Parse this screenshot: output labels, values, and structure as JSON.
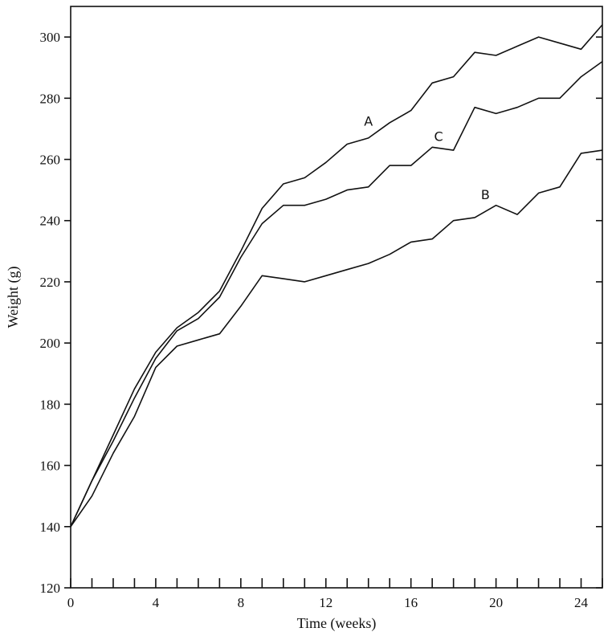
{
  "chart_data": {
    "type": "line",
    "title": "",
    "xlabel": "Time (weeks)",
    "ylabel": "Weight (g)",
    "xlim": [
      0,
      25
    ],
    "ylim": [
      120,
      310
    ],
    "xticks": [
      0,
      4,
      8,
      12,
      16,
      20,
      24
    ],
    "xticks_minor": [
      1,
      2,
      3,
      5,
      6,
      7,
      9,
      10,
      11,
      13,
      14,
      15,
      17,
      18,
      19,
      21,
      22,
      23,
      25
    ],
    "yticks": [
      120,
      140,
      160,
      180,
      200,
      220,
      240,
      260,
      280,
      300
    ],
    "grid": false,
    "legend": "none",
    "x": [
      0,
      1,
      2,
      3,
      4,
      5,
      6,
      7,
      8,
      9,
      10,
      11,
      12,
      13,
      14,
      15,
      16,
      17,
      18,
      19,
      20,
      21,
      22,
      23,
      24,
      25
    ],
    "series": [
      {
        "name": "A",
        "label_at": [
          14,
          271
        ],
        "values": [
          140,
          155,
          170,
          185,
          197,
          205,
          210,
          217,
          230,
          244,
          252,
          254,
          259,
          265,
          267,
          272,
          276,
          285,
          287,
          295,
          294,
          297,
          300,
          298,
          296,
          304
        ]
      },
      {
        "name": "C",
        "label_at": [
          17.3,
          266
        ],
        "values": [
          140,
          155,
          168,
          182,
          195,
          204,
          208,
          215,
          228,
          239,
          245,
          245,
          247,
          250,
          251,
          258,
          258,
          264,
          263,
          277,
          275,
          277,
          280,
          280,
          287,
          292
        ]
      },
      {
        "name": "B",
        "label_at": [
          19.5,
          247
        ],
        "values": [
          140,
          150,
          164,
          176,
          192,
          199,
          201,
          203,
          212,
          222,
          221,
          220,
          222,
          224,
          226,
          229,
          233,
          234,
          240,
          241,
          245,
          242,
          249,
          251,
          262,
          263
        ]
      }
    ]
  }
}
